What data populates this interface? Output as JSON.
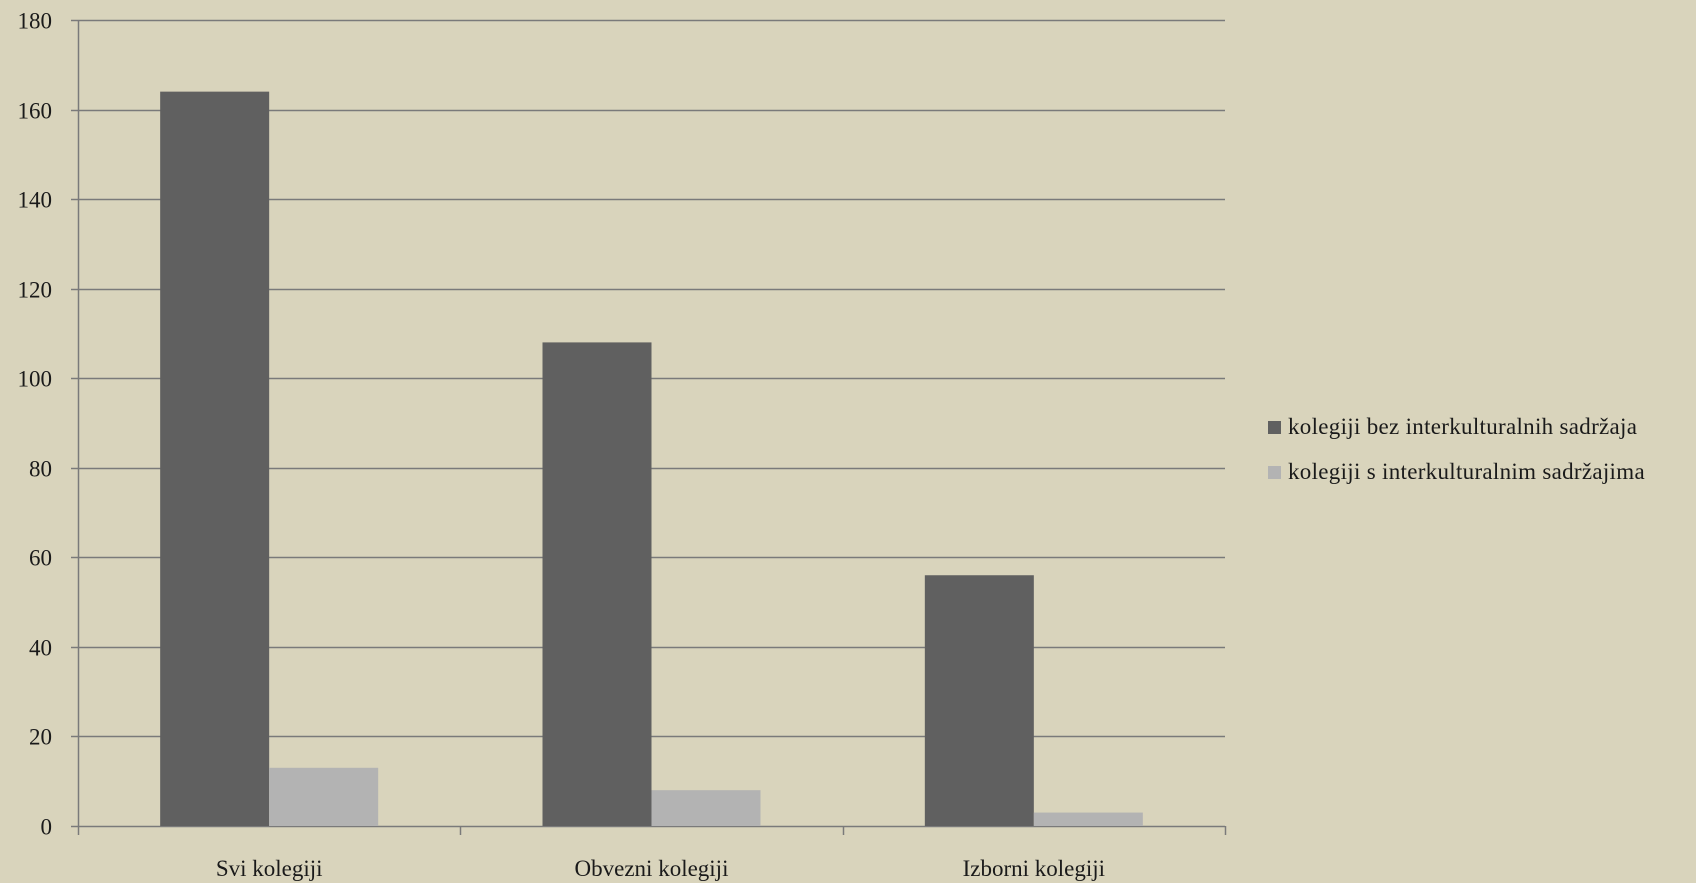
{
  "chart_data": {
    "type": "bar",
    "title": "",
    "xlabel": "",
    "ylabel": "",
    "categories": [
      "Svi kolegiji",
      "Obvezni kolegiji",
      "Izborni kolegiji"
    ],
    "series": [
      {
        "name": "kolegiji bez interkulturalnih sadržaja",
        "values": [
          164,
          108,
          56
        ],
        "color": "#606060"
      },
      {
        "name": "kolegiji s interkulturalnim sadržajima",
        "values": [
          13,
          8,
          3
        ],
        "color": "#b3b3b3"
      }
    ],
    "ylim": [
      0,
      180
    ],
    "yticks": [
      0,
      20,
      40,
      60,
      80,
      100,
      120,
      140,
      160,
      180
    ],
    "grid": true,
    "legend_position": "right",
    "background_color": "#d9d4bc",
    "gridline_color": "#7a7a7a"
  }
}
